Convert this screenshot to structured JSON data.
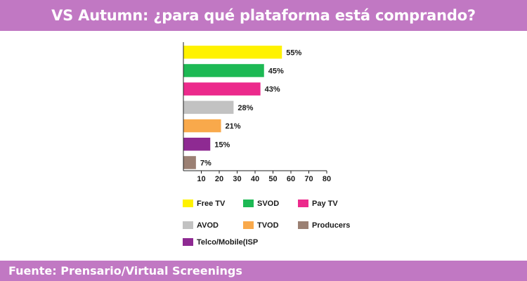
{
  "header": {
    "title": "VS Autumn: ¿para qué plataforma está comprando?"
  },
  "footer": {
    "source": "Fuente: Prensario/Virtual Screenings"
  },
  "colors": {
    "band": "#c178c3",
    "axis": "#222222",
    "text": "#1a1a1a"
  },
  "chart_data": {
    "type": "bar",
    "orientation": "horizontal",
    "categories": [
      "Free TV",
      "SVOD",
      "Pay TV",
      "AVOD",
      "TVOD",
      "Telco/Mobile(ISP",
      "Producers"
    ],
    "values": [
      55,
      45,
      43,
      28,
      21,
      15,
      7
    ],
    "value_labels": [
      "55%",
      "45%",
      "43%",
      "28%",
      "21%",
      "15%",
      "7%"
    ],
    "colors": [
      "#fff200",
      "#1db954",
      "#ec2a8c",
      "#c2c2c2",
      "#f9a94b",
      "#8e2a92",
      "#9b8073"
    ],
    "xlim": [
      0,
      80
    ],
    "xticks": [
      10,
      20,
      30,
      40,
      50,
      60,
      70,
      80
    ],
    "xtick_labels": [
      "10",
      "20",
      "30",
      "40",
      "50",
      "60",
      "70",
      "80"
    ],
    "grid": false,
    "legend": {
      "position": "bottom",
      "order": [
        "Free TV",
        "SVOD",
        "Pay TV",
        "AVOD",
        "TVOD",
        "Producers",
        "Telco/Mobile(ISP"
      ]
    }
  }
}
